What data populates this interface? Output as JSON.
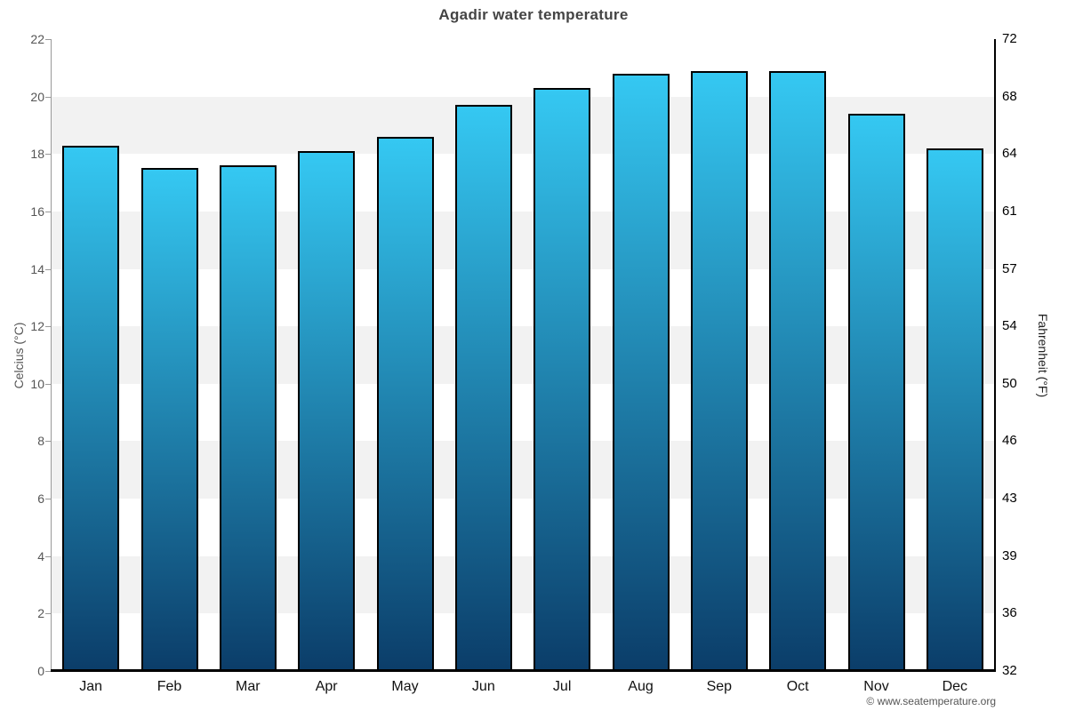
{
  "chart_data": {
    "type": "bar",
    "title": "Agadir water temperature",
    "categories": [
      "Jan",
      "Feb",
      "Mar",
      "Apr",
      "May",
      "Jun",
      "Jul",
      "Aug",
      "Sep",
      "Oct",
      "Nov",
      "Dec"
    ],
    "values": [
      18.3,
      17.5,
      17.6,
      18.1,
      18.6,
      19.7,
      20.3,
      20.8,
      20.9,
      20.9,
      19.4,
      18.2
    ],
    "xlabel": "",
    "ylabel_left": "Celcius (°C)",
    "ylabel_right": "Fahrenheit (°F)",
    "ylim": [
      0,
      22
    ],
    "yticks_left": [
      0,
      2,
      4,
      6,
      8,
      10,
      12,
      14,
      16,
      18,
      20,
      22
    ],
    "yticks_right": [
      32,
      36,
      39,
      43,
      46,
      50,
      54,
      57,
      61,
      64,
      68,
      72
    ],
    "grid": "alternating horizontal bands every 2 units",
    "legend": "none"
  },
  "credit": {
    "text": "© www.seatemperature.org"
  },
  "colors": {
    "bar_gradient_top": "#35c8f2",
    "bar_gradient_bottom": "#0b3d69",
    "bar_border": "#000000",
    "band_gray": "#f2f2f2",
    "left_axis_line": "#999999",
    "right_axis_line": "#000000",
    "baseline": "#000000",
    "title_text": "#444444",
    "left_tick_text": "#555555",
    "right_tick_text": "#000000",
    "month_text": "#111111",
    "axis_title_left_text": "#555555",
    "axis_title_right_text": "#222222",
    "credit_text": "#555555"
  }
}
